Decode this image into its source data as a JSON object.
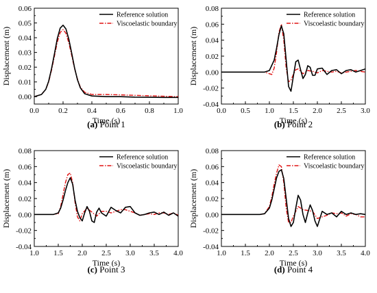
{
  "colors": {
    "reference": "#000000",
    "viscoelastic": "#e01010"
  },
  "chart_data": [
    {
      "type": "line",
      "caption_letter": "(a)",
      "caption_text": " Point 1",
      "xlabel": "Time (s)",
      "ylabel": "Displacement (m)",
      "xlim": [
        0.0,
        1.0
      ],
      "ylim": [
        -0.005,
        0.06
      ],
      "xticks": [
        "0.0",
        "0.2",
        "0.4",
        "0.6",
        "0.8",
        "1.0"
      ],
      "yticks": [
        "0.00",
        "0.01",
        "0.02",
        "0.03",
        "0.04",
        "0.05",
        "0.06"
      ],
      "legend": "top-right",
      "series": [
        {
          "name": "Reference solution",
          "style": "solid",
          "x": [
            0.0,
            0.05,
            0.08,
            0.1,
            0.12,
            0.14,
            0.16,
            0.18,
            0.2,
            0.22,
            0.24,
            0.26,
            0.28,
            0.3,
            0.32,
            0.35,
            0.4,
            0.5,
            0.6,
            0.7,
            0.8,
            0.9,
            1.0
          ],
          "y": [
            0.0,
            0.0015,
            0.005,
            0.0105,
            0.019,
            0.029,
            0.0395,
            0.0465,
            0.0485,
            0.046,
            0.039,
            0.0295,
            0.0195,
            0.0115,
            0.006,
            0.002,
            0.0005,
            0.0,
            0.0,
            -0.0003,
            -0.0004,
            -0.0005,
            -0.0005
          ]
        },
        {
          "name": "Viscoelastic boundary",
          "style": "dashdot",
          "x": [
            0.0,
            0.05,
            0.08,
            0.1,
            0.12,
            0.14,
            0.16,
            0.18,
            0.2,
            0.22,
            0.24,
            0.26,
            0.28,
            0.3,
            0.32,
            0.35,
            0.4,
            0.5,
            0.6,
            0.7,
            0.8,
            0.9,
            1.0
          ],
          "y": [
            0.0,
            0.0015,
            0.005,
            0.01,
            0.018,
            0.0275,
            0.037,
            0.0435,
            0.0455,
            0.043,
            0.0365,
            0.028,
            0.019,
            0.012,
            0.0065,
            0.003,
            0.0015,
            0.0015,
            0.0012,
            0.0009,
            0.0006,
            0.0003,
            0.0
          ]
        }
      ]
    },
    {
      "type": "line",
      "caption_letter": "(b)",
      "caption_text": " Point 2",
      "xlabel": "Time (s)",
      "ylabel": "Displacement (m)",
      "xlim": [
        0.0,
        3.0
      ],
      "ylim": [
        -0.04,
        0.08
      ],
      "xticks": [
        "0.0",
        "0.5",
        "1.0",
        "1.5",
        "2.0",
        "2.5",
        "3.0"
      ],
      "yticks": [
        "-0.04",
        "-0.02",
        "0.00",
        "0.02",
        "0.04",
        "0.06",
        "0.08"
      ],
      "legend": "top-right",
      "series": [
        {
          "name": "Reference solution",
          "style": "solid",
          "x": [
            0.0,
            0.9,
            1.0,
            1.1,
            1.15,
            1.2,
            1.25,
            1.3,
            1.35,
            1.4,
            1.45,
            1.5,
            1.55,
            1.6,
            1.65,
            1.7,
            1.75,
            1.8,
            1.85,
            1.9,
            1.95,
            2.0,
            2.1,
            2.2,
            2.3,
            2.4,
            2.5,
            2.6,
            2.7,
            2.8,
            2.9,
            3.0
          ],
          "y": [
            0.0,
            0.0,
            0.002,
            0.015,
            0.03,
            0.047,
            0.058,
            0.048,
            0.015,
            -0.018,
            -0.024,
            -0.005,
            0.013,
            0.015,
            0.003,
            -0.008,
            -0.003,
            0.008,
            0.006,
            -0.004,
            -0.004,
            0.004,
            0.005,
            -0.003,
            0.002,
            0.003,
            -0.002,
            0.002,
            0.003,
            0.0,
            0.002,
            0.004
          ]
        },
        {
          "name": "Viscoelastic boundary",
          "style": "dashdot",
          "x": [
            0.0,
            0.9,
            1.0,
            1.05,
            1.1,
            1.15,
            1.2,
            1.25,
            1.3,
            1.35,
            1.4,
            1.45,
            1.5,
            1.55,
            1.6,
            1.7,
            1.8,
            1.9,
            2.0,
            2.1,
            2.2,
            2.3,
            2.4,
            2.5,
            2.6,
            2.7,
            2.8,
            2.9,
            3.0
          ],
          "y": [
            0.0,
            0.0,
            -0.002,
            -0.003,
            0.005,
            0.025,
            0.05,
            0.06,
            0.04,
            0.005,
            -0.012,
            -0.01,
            -0.003,
            0.003,
            0.004,
            -0.002,
            0.002,
            0.001,
            -0.001,
            0.002,
            0.001,
            0.0,
            0.001,
            -0.001,
            0.0,
            0.001,
            0.002,
            0.001,
            0.0
          ]
        }
      ]
    },
    {
      "type": "line",
      "caption_letter": "(c)",
      "caption_text": " Point 3",
      "xlabel": "Time (s)",
      "ylabel": "Displacement (m)",
      "xlim": [
        1.0,
        4.0
      ],
      "ylim": [
        -0.04,
        0.08
      ],
      "xticks": [
        "1.0",
        "1.5",
        "2.0",
        "2.5",
        "3.0",
        "3.5",
        "4.0"
      ],
      "yticks": [
        "-0.04",
        "-0.02",
        "0.00",
        "0.02",
        "0.04",
        "0.06",
        "0.08"
      ],
      "legend": "top-right",
      "series": [
        {
          "name": "Reference solution",
          "style": "solid",
          "x": [
            1.0,
            1.4,
            1.5,
            1.55,
            1.6,
            1.65,
            1.7,
            1.75,
            1.8,
            1.85,
            1.9,
            1.95,
            2.0,
            2.05,
            2.1,
            2.15,
            2.2,
            2.25,
            2.3,
            2.35,
            2.4,
            2.5,
            2.6,
            2.7,
            2.8,
            2.9,
            3.0,
            3.1,
            3.2,
            3.3,
            3.4,
            3.5,
            3.6,
            3.7,
            3.8,
            3.9,
            4.0
          ],
          "y": [
            0.0,
            0.0,
            0.002,
            0.008,
            0.018,
            0.03,
            0.04,
            0.046,
            0.038,
            0.018,
            0.004,
            -0.004,
            -0.008,
            0.002,
            0.01,
            0.004,
            -0.008,
            -0.01,
            0.003,
            0.008,
            0.002,
            -0.002,
            0.009,
            0.005,
            0.002,
            0.009,
            0.01,
            0.002,
            -0.001,
            0.0,
            0.002,
            0.003,
            0.0,
            0.003,
            -0.001,
            0.002,
            -0.002
          ]
        },
        {
          "name": "Viscoelastic boundary",
          "style": "dashdot",
          "x": [
            1.0,
            1.4,
            1.5,
            1.55,
            1.6,
            1.65,
            1.7,
            1.75,
            1.8,
            1.85,
            1.9,
            1.95,
            2.0,
            2.1,
            2.2,
            2.3,
            2.4,
            2.5,
            2.6,
            2.7,
            2.8,
            2.9,
            3.0,
            3.1,
            3.2,
            3.3,
            3.4,
            3.5,
            3.6,
            3.7,
            3.8,
            3.9,
            4.0
          ],
          "y": [
            0.0,
            0.0,
            0.001,
            0.01,
            0.025,
            0.04,
            0.05,
            0.052,
            0.04,
            0.015,
            -0.003,
            -0.008,
            0.001,
            0.008,
            0.003,
            -0.002,
            0.004,
            0.004,
            0.002,
            0.004,
            0.006,
            0.006,
            0.004,
            0.002,
            -0.001,
            0.0,
            0.001,
            0.0,
            0.002,
            0.002,
            0.0,
            0.002,
            -0.001
          ]
        }
      ]
    },
    {
      "type": "line",
      "caption_letter": "(d)",
      "caption_text": " Point 4",
      "xlabel": "Time (s)",
      "ylabel": "Displacement (m)",
      "xlim": [
        1.0,
        4.0
      ],
      "ylim": [
        -0.04,
        0.08
      ],
      "xticks": [
        "1.0",
        "1.5",
        "2.0",
        "2.5",
        "3.0",
        "3.5",
        "4.0"
      ],
      "yticks": [
        "-0.04",
        "-0.02",
        "0.00",
        "0.02",
        "0.04",
        "0.06",
        "0.08"
      ],
      "legend": "top-right",
      "series": [
        {
          "name": "Reference solution",
          "style": "solid",
          "x": [
            1.0,
            1.8,
            1.9,
            2.0,
            2.05,
            2.1,
            2.15,
            2.2,
            2.25,
            2.3,
            2.35,
            2.4,
            2.45,
            2.5,
            2.55,
            2.6,
            2.65,
            2.7,
            2.75,
            2.8,
            2.85,
            2.9,
            2.95,
            3.0,
            3.1,
            3.2,
            3.3,
            3.4,
            3.5,
            3.6,
            3.7,
            3.8,
            3.9,
            4.0
          ],
          "y": [
            0.0,
            0.0,
            0.001,
            0.008,
            0.018,
            0.032,
            0.046,
            0.054,
            0.056,
            0.045,
            0.02,
            -0.005,
            -0.015,
            -0.01,
            0.008,
            0.024,
            0.018,
            0.0,
            -0.01,
            0.002,
            0.012,
            0.005,
            -0.008,
            -0.015,
            0.004,
            0.0,
            0.002,
            -0.003,
            0.004,
            0.0,
            0.002,
            0.0,
            0.001,
            0.0
          ]
        },
        {
          "name": "Viscoelastic boundary",
          "style": "dashdot",
          "x": [
            1.0,
            1.8,
            1.9,
            2.0,
            2.05,
            2.1,
            2.15,
            2.2,
            2.25,
            2.3,
            2.35,
            2.4,
            2.45,
            2.5,
            2.55,
            2.6,
            2.7,
            2.8,
            2.9,
            3.0,
            3.1,
            3.2,
            3.3,
            3.4,
            3.5,
            3.6,
            3.7,
            3.8,
            3.9,
            4.0
          ],
          "y": [
            0.0,
            0.0,
            0.001,
            0.01,
            0.022,
            0.038,
            0.052,
            0.062,
            0.06,
            0.04,
            0.008,
            -0.01,
            -0.01,
            -0.002,
            0.004,
            0.01,
            0.006,
            0.005,
            0.004,
            -0.005,
            -0.003,
            -0.001,
            0.002,
            0.001,
            0.002,
            -0.002,
            0.001,
            0.0,
            -0.003,
            -0.003
          ]
        }
      ]
    }
  ]
}
